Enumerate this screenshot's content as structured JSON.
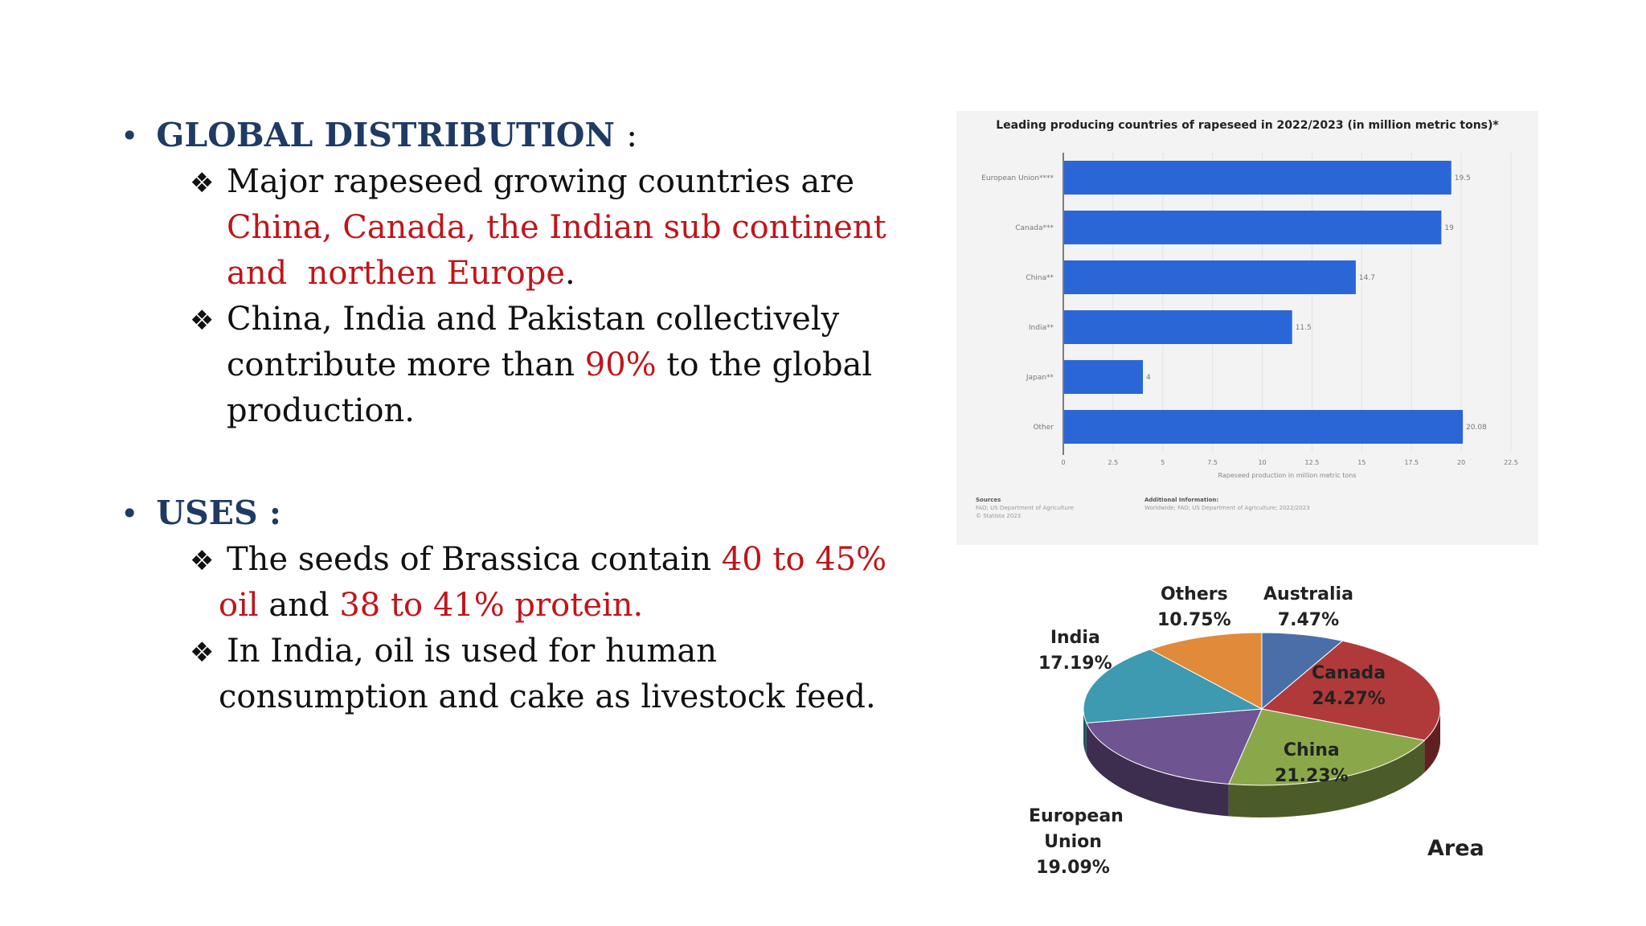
{
  "global": {
    "heading": "GLOBAL DISTRIBUTION",
    "colon": ":",
    "bullet1": {
      "line1": "Major rapeseed growing countries are",
      "line2_red": "China, Canada, the Indian sub continent",
      "line3_red": "and  northen Europe",
      "line3_end": "."
    },
    "bullet2": {
      "line1": "China, India and Pakistan collectively",
      "line2_pre": "contribute more than ",
      "line2_red": "90%",
      "line2_post": " to the global",
      "line3": "production."
    }
  },
  "uses": {
    "heading": "USES :",
    "bullet1": {
      "line1_pre": "The seeds of Brassica contain ",
      "line1_red": "40 to 45%",
      "line2_red1": "oil",
      "line2_mid": " and ",
      "line2_red2": "38 to 41% protein."
    },
    "bullet2": {
      "line1": "In India, oil is used for human",
      "line2": "consumption and cake as livestock feed."
    }
  },
  "chart_data": [
    {
      "type": "bar",
      "orientation": "horizontal",
      "title": "Leading producing countries of rapeseed in 2022/2023 (in million metric tons)*",
      "categories": [
        "European Union****",
        "Canada***",
        "China**",
        "India**",
        "Japan**",
        "Other"
      ],
      "values": [
        19.5,
        19,
        14.7,
        11.5,
        4,
        20.08
      ],
      "value_labels": [
        "19.5",
        "19",
        "14.7",
        "11.5",
        "4",
        "20.08"
      ],
      "xlabel": "Rapeseed production in million metric tons",
      "xlim": [
        0,
        22.5
      ],
      "xticks": [
        "0",
        "2.5",
        "5",
        "7.5",
        "10",
        "12.5",
        "15",
        "17.5",
        "20",
        "22.5"
      ],
      "grid": true,
      "bar_color": "#2b66d6",
      "footer": {
        "sources_title": "Sources",
        "sources_lines": [
          "FAO; US Department of Agriculture",
          "© Statista 2023"
        ],
        "info_title": "Additional Information:",
        "info_line": "Worldwide; FAO; US Department of Agriculture; 2022/2023"
      }
    },
    {
      "type": "pie",
      "style": "3d",
      "label": "Area",
      "slices": [
        {
          "name": "Australia",
          "value": 7.47,
          "pct": "7.47%",
          "color": "#4a6fa8"
        },
        {
          "name": "Canada",
          "value": 24.27,
          "pct": "24.27%",
          "color": "#b03a3a"
        },
        {
          "name": "China",
          "value": 21.23,
          "pct": "21.23%",
          "color": "#8aa84a"
        },
        {
          "name": "European Union",
          "value": 19.09,
          "pct": "19.09%",
          "color": "#6e5490"
        },
        {
          "name": "India",
          "value": 17.19,
          "pct": "17.19%",
          "color": "#3d9ab0"
        },
        {
          "name": "Others",
          "value": 10.75,
          "pct": "10.75%",
          "color": "#e08a3a"
        }
      ]
    }
  ]
}
